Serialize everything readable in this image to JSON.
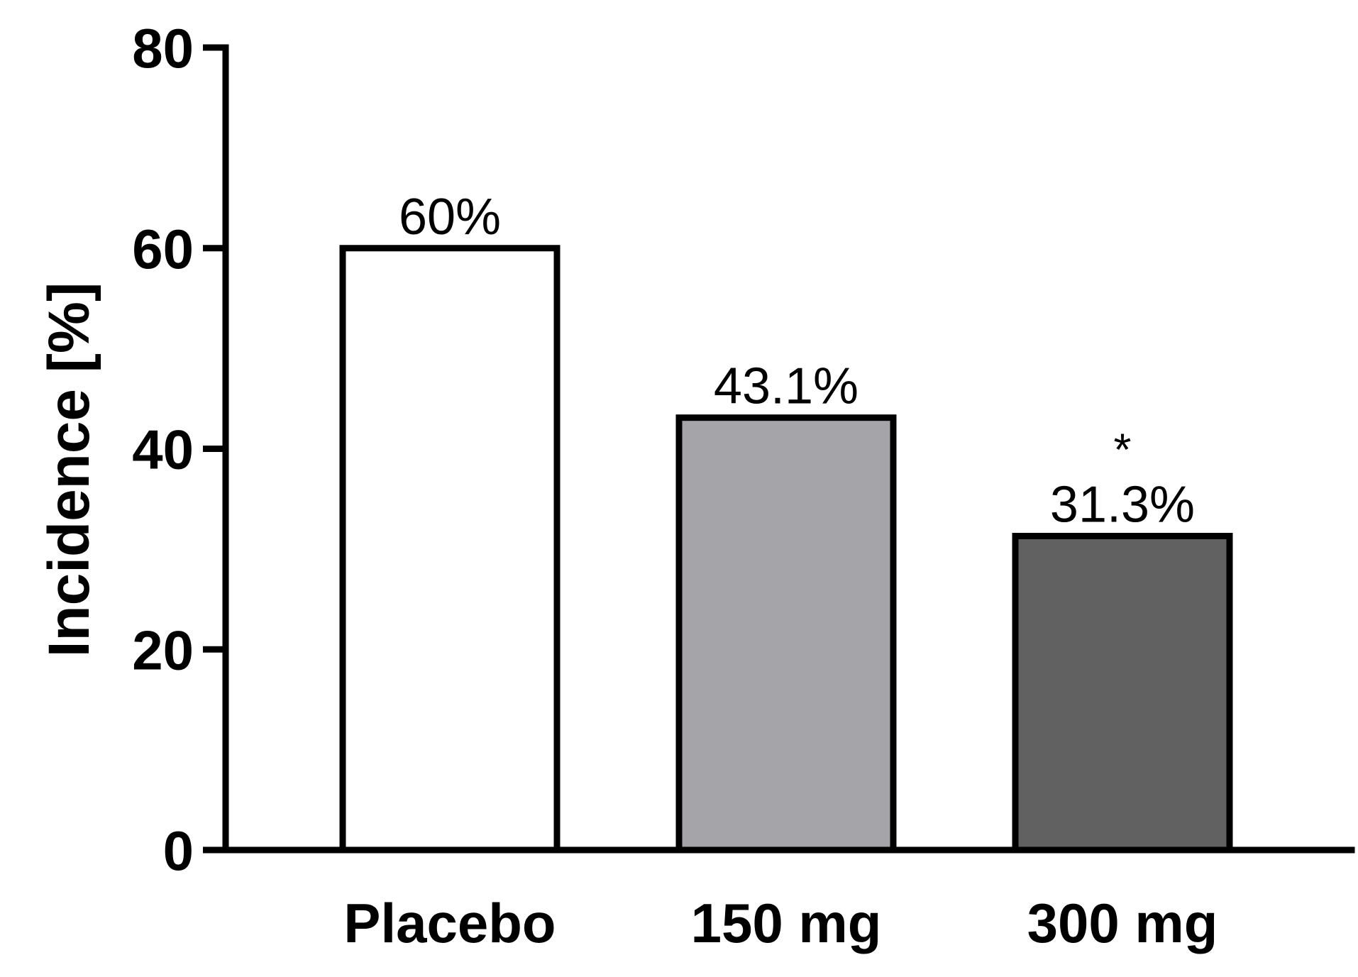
{
  "chart_data": {
    "type": "bar",
    "title": "",
    "xlabel": "",
    "ylabel": "Incidence [%]",
    "ylim": [
      0,
      80
    ],
    "yticks": [
      0,
      20,
      40,
      60,
      80
    ],
    "grid": false,
    "categories": [
      "Placebo",
      "150 mg",
      "300 mg"
    ],
    "values": [
      60,
      43.1,
      31.3
    ],
    "data_labels": [
      "60%",
      "43.1%",
      "31.3%"
    ],
    "annotations": [
      "",
      "",
      "*"
    ],
    "bar_colors": [
      "#ffffff",
      "#a5a4a9",
      "#616161"
    ],
    "edge_color": "#000000"
  }
}
